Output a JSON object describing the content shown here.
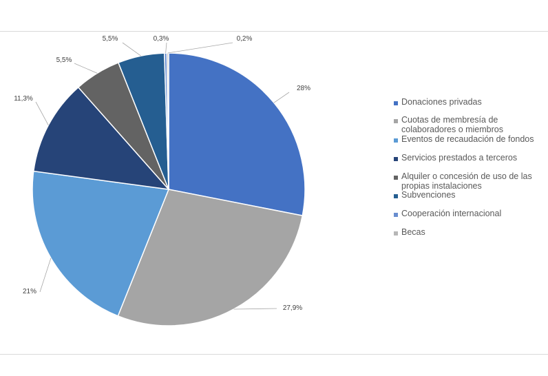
{
  "chart_data": {
    "type": "pie",
    "title": "",
    "legend_position": "right",
    "slices": [
      {
        "name": "Donaciones privadas",
        "value": 28,
        "label": "28%",
        "color": "#4472c4"
      },
      {
        "name": "Cuotas de membresía de colaboradores o miembros",
        "value": 27.9,
        "label": "27,9%",
        "color": "#a5a5a5"
      },
      {
        "name": "Eventos de recaudación de fondos",
        "value": 21,
        "label": "21%",
        "color": "#5b9bd5"
      },
      {
        "name": "Servicios prestados a terceros",
        "value": 11.3,
        "label": "11,3%",
        "color": "#264478"
      },
      {
        "name": "Alquiler o concesión de uso de las propias instalaciones",
        "value": 5.5,
        "label": "5,5%",
        "color": "#636363"
      },
      {
        "name": "Subvenciones",
        "value": 5.5,
        "label": "5,5%",
        "color": "#255e91"
      },
      {
        "name": "Cooperación internacional",
        "value": 0.3,
        "label": "0,3%",
        "color": "#698ed0"
      },
      {
        "name": "Becas",
        "value": 0.2,
        "label": "0,2%",
        "color": "#b7b7b7"
      }
    ]
  }
}
